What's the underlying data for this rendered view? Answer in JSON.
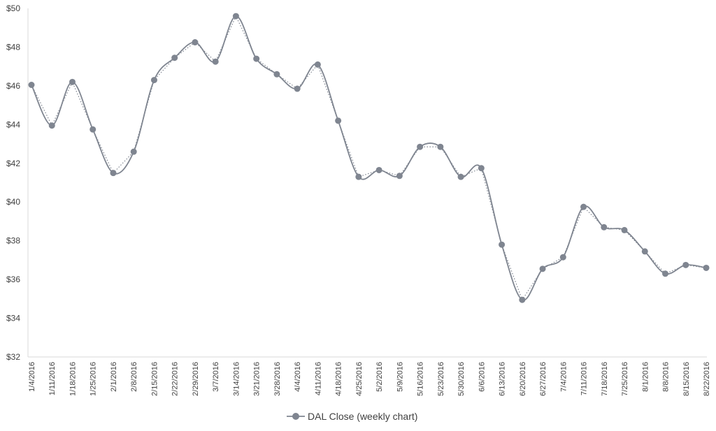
{
  "chart_data": {
    "type": "line",
    "title": "",
    "xlabel": "",
    "ylabel": "",
    "ylim": [
      32,
      50
    ],
    "y_ticks": [
      32,
      34,
      36,
      38,
      40,
      42,
      44,
      46,
      48,
      50
    ],
    "y_tick_prefix": "$",
    "grid": false,
    "legend_position": "bottom",
    "x": [
      "1/4/2016",
      "1/11/2016",
      "1/18/2016",
      "1/25/2016",
      "2/1/2016",
      "2/8/2016",
      "2/15/2016",
      "2/22/2016",
      "2/29/2016",
      "3/7/2016",
      "3/14/2016",
      "3/21/2016",
      "3/28/2016",
      "4/4/2016",
      "4/11/2016",
      "4/18/2016",
      "4/25/2016",
      "5/2/2016",
      "5/9/2016",
      "5/16/2016",
      "5/23/2016",
      "5/30/2016",
      "6/6/2016",
      "6/13/2016",
      "6/20/2016",
      "6/27/2016",
      "7/4/2016",
      "7/11/2016",
      "7/18/2016",
      "7/25/2016",
      "8/1/2016",
      "8/8/2016",
      "8/15/2016",
      "8/22/2016"
    ],
    "series": [
      {
        "name": "DAL Close (weekly chart)",
        "color": "#7f8590",
        "values": [
          46.05,
          43.95,
          46.2,
          43.75,
          41.5,
          42.6,
          46.3,
          47.45,
          48.25,
          47.25,
          49.6,
          47.4,
          46.6,
          45.85,
          47.1,
          44.2,
          41.3,
          41.65,
          41.35,
          42.85,
          42.85,
          41.3,
          41.75,
          37.8,
          34.95,
          36.55,
          37.15,
          39.75,
          38.7,
          38.55,
          37.45,
          36.3,
          36.75,
          36.6
        ]
      }
    ],
    "trendline": {
      "style": "dotted",
      "color": "#7f8590"
    }
  }
}
